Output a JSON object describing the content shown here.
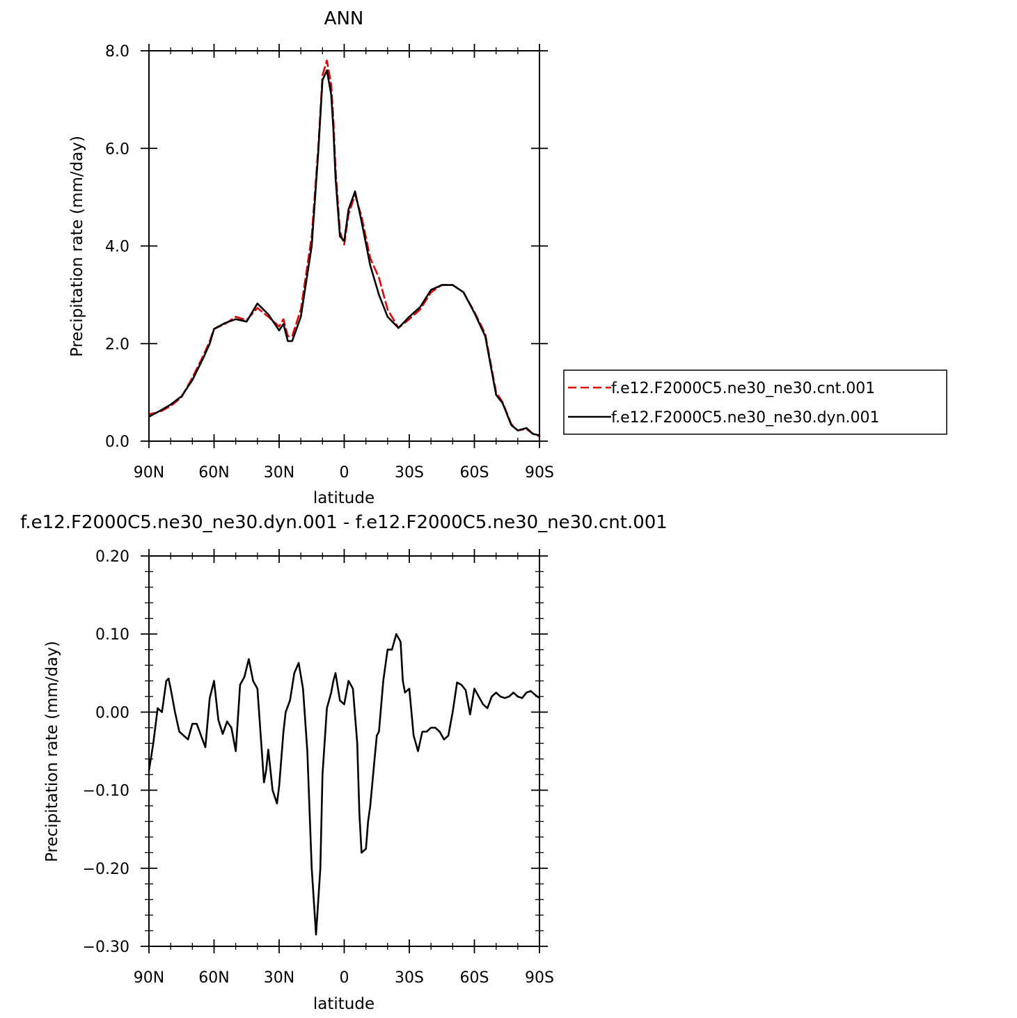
{
  "chart_data": [
    {
      "type": "line",
      "title": "ANN",
      "xlabel": "latitude",
      "ylabel": "Precipitation rate (mm/day)",
      "xlim": [
        90,
        -90
      ],
      "ylim": [
        0,
        8
      ],
      "x_ticks": [
        {
          "value": 90,
          "label": "90N"
        },
        {
          "value": 60,
          "label": "60N"
        },
        {
          "value": 30,
          "label": "30N"
        },
        {
          "value": 0,
          "label": "0"
        },
        {
          "value": -30,
          "label": "30S"
        },
        {
          "value": -60,
          "label": "60S"
        },
        {
          "value": -90,
          "label": "90S"
        }
      ],
      "y_ticks": [
        {
          "value": 0,
          "label": "0.0"
        },
        {
          "value": 2,
          "label": "2.0"
        },
        {
          "value": 4,
          "label": "4.0"
        },
        {
          "value": 6,
          "label": "6.0"
        },
        {
          "value": 8,
          "label": "8.0"
        }
      ],
      "legend": "right",
      "series": [
        {
          "name": "f.e12.F2000C5.ne30_ne30.cnt.001",
          "color": "#e00000",
          "dash": "dashed",
          "x": [
            90,
            85,
            80,
            75,
            70,
            65,
            62,
            60,
            55,
            50,
            45,
            40,
            35,
            30,
            28,
            26,
            24,
            20,
            15,
            12,
            10,
            8,
            6,
            5,
            4,
            2,
            0,
            -2,
            -5,
            -8,
            -12,
            -16,
            -20,
            -25,
            -30,
            -35,
            -40,
            -45,
            -50,
            -55,
            -60,
            -65,
            -70,
            -73,
            -77,
            -80,
            -84,
            -87,
            -90
          ],
          "y": [
            0.55,
            0.6,
            0.72,
            0.9,
            1.3,
            1.75,
            2.05,
            2.3,
            2.4,
            2.55,
            2.48,
            2.73,
            2.55,
            2.35,
            2.5,
            2.15,
            2.15,
            2.7,
            4.2,
            6.0,
            7.5,
            7.8,
            7.3,
            6.6,
            5.6,
            4.3,
            4.03,
            4.65,
            5.05,
            4.6,
            3.75,
            3.35,
            2.7,
            2.32,
            2.5,
            2.7,
            3.05,
            3.2,
            3.2,
            3.05,
            2.65,
            2.2,
            1.0,
            0.8,
            0.35,
            0.22,
            0.25,
            0.15,
            0.1
          ]
        },
        {
          "name": "f.e12.F2000C5.ne30_ne30.dyn.001",
          "color": "#000000",
          "dash": "solid",
          "x": [
            90,
            85,
            80,
            75,
            70,
            65,
            62,
            60,
            55,
            50,
            45,
            40,
            35,
            30,
            28,
            26,
            24,
            20,
            15,
            12,
            10,
            8,
            6,
            5,
            4,
            2,
            0,
            -2,
            -5,
            -8,
            -12,
            -16,
            -20,
            -25,
            -30,
            -35,
            -40,
            -45,
            -50,
            -55,
            -60,
            -65,
            -70,
            -73,
            -77,
            -80,
            -84,
            -87,
            -90
          ],
          "y": [
            0.5,
            0.62,
            0.75,
            0.92,
            1.25,
            1.7,
            2.0,
            2.3,
            2.42,
            2.5,
            2.45,
            2.82,
            2.6,
            2.27,
            2.4,
            2.05,
            2.05,
            2.55,
            4.0,
            5.9,
            7.4,
            7.6,
            7.1,
            6.4,
            5.4,
            4.2,
            4.1,
            4.75,
            5.12,
            4.5,
            3.6,
            3.0,
            2.55,
            2.32,
            2.55,
            2.75,
            3.1,
            3.2,
            3.2,
            3.05,
            2.63,
            2.15,
            0.95,
            0.78,
            0.33,
            0.22,
            0.27,
            0.15,
            0.12
          ]
        }
      ]
    },
    {
      "type": "line",
      "title": "f.e12.F2000C5.ne30_ne30.dyn.001 - f.e12.F2000C5.ne30_ne30.cnt.001",
      "xlabel": "latitude",
      "ylabel": "Precipitation rate (mm/day)",
      "xlim": [
        90,
        -90
      ],
      "ylim": [
        -0.3,
        0.2
      ],
      "x_ticks": [
        {
          "value": 90,
          "label": "90N"
        },
        {
          "value": 60,
          "label": "60N"
        },
        {
          "value": 30,
          "label": "30N"
        },
        {
          "value": 0,
          "label": "0"
        },
        {
          "value": -30,
          "label": "30S"
        },
        {
          "value": -60,
          "label": "60S"
        },
        {
          "value": -90,
          "label": "90S"
        }
      ],
      "y_ticks": [
        {
          "value": -0.3,
          "label": "−0.30"
        },
        {
          "value": -0.2,
          "label": "−0.20"
        },
        {
          "value": -0.1,
          "label": "−0.10"
        },
        {
          "value": 0,
          "label": "0.00"
        },
        {
          "value": 0.1,
          "label": "0.10"
        },
        {
          "value": 0.2,
          "label": "0.20"
        }
      ],
      "series": [
        {
          "color": "#000000",
          "dash": "solid",
          "x": [
            90,
            88,
            86,
            84,
            82,
            81,
            80,
            78,
            76,
            74,
            72,
            70,
            68,
            66,
            64,
            62,
            60,
            58,
            56,
            54,
            52,
            50,
            48,
            46,
            44,
            42,
            40,
            38,
            37,
            36,
            35,
            33,
            31,
            30,
            29,
            28,
            27,
            25,
            23,
            21,
            19,
            17,
            15,
            13,
            11,
            10,
            8,
            6,
            5,
            4,
            2,
            0,
            -2,
            -4,
            -6,
            -7,
            -8,
            -10,
            -11,
            -12,
            -14,
            -15,
            -16,
            -18,
            -20,
            -22,
            -24,
            -26,
            -27,
            -28,
            -30,
            -31,
            -32,
            -33,
            -34,
            -36,
            -38,
            -40,
            -42,
            -44,
            -46,
            -48,
            -50,
            -52,
            -54,
            -56,
            -58,
            -60,
            -62,
            -64,
            -66,
            -68,
            -70,
            -72,
            -74,
            -76,
            -78,
            -80,
            -82,
            -84,
            -86,
            -88,
            -90
          ],
          "y": [
            -0.075,
            -0.04,
            0.005,
            0.0,
            0.04,
            0.043,
            0.03,
            0.0,
            -0.025,
            -0.03,
            -0.035,
            -0.015,
            -0.015,
            -0.03,
            -0.045,
            0.018,
            0.04,
            -0.01,
            -0.028,
            -0.012,
            -0.02,
            -0.05,
            0.035,
            0.045,
            0.068,
            0.04,
            0.03,
            -0.05,
            -0.09,
            -0.075,
            -0.048,
            -0.1,
            -0.117,
            -0.095,
            -0.06,
            -0.025,
            0.0,
            0.015,
            0.05,
            0.063,
            0.03,
            -0.05,
            -0.2,
            -0.285,
            -0.2,
            -0.08,
            0.005,
            0.025,
            0.04,
            0.05,
            0.015,
            0.01,
            0.04,
            0.03,
            -0.04,
            -0.13,
            -0.18,
            -0.175,
            -0.14,
            -0.12,
            -0.06,
            -0.03,
            -0.025,
            0.04,
            0.08,
            0.08,
            0.1,
            0.09,
            0.04,
            0.025,
            0.03,
            0.0,
            -0.03,
            -0.04,
            -0.05,
            -0.025,
            -0.025,
            -0.02,
            -0.02,
            -0.025,
            -0.035,
            -0.03,
            0.0,
            0.038,
            0.035,
            0.028,
            -0.003,
            0.03,
            0.02,
            0.01,
            0.005,
            0.02,
            0.025,
            0.02,
            0.018,
            0.02,
            0.025,
            0.02,
            0.018,
            0.025,
            0.027,
            0.022,
            0.018
          ]
        }
      ]
    }
  ]
}
